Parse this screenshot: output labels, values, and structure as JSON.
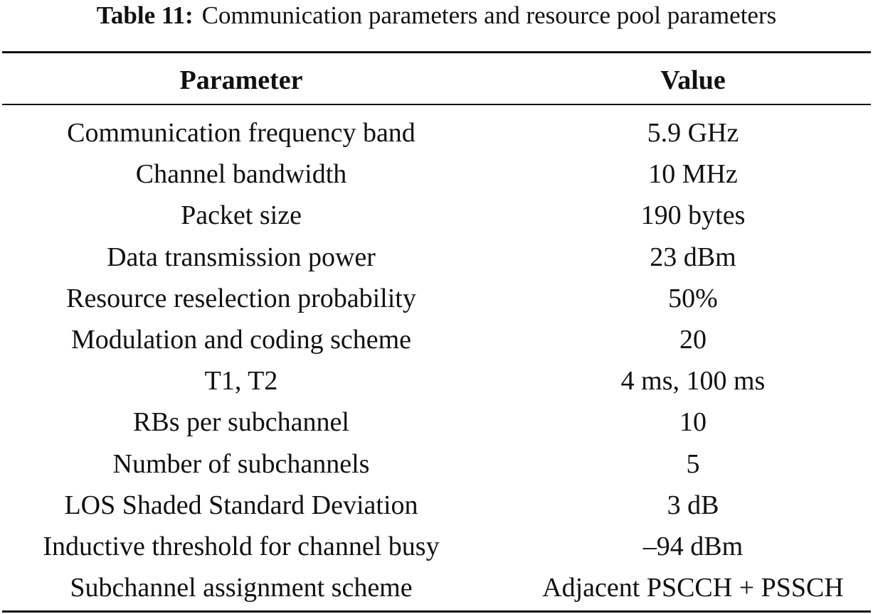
{
  "caption": {
    "label": "Table 11:",
    "text": "Communication parameters and resource pool parameters"
  },
  "table": {
    "headers": [
      "Parameter",
      "Value"
    ],
    "rows": [
      [
        "Communication frequency band",
        "5.9 GHz"
      ],
      [
        "Channel bandwidth",
        "10 MHz"
      ],
      [
        "Packet size",
        "190 bytes"
      ],
      [
        "Data transmission power",
        "23 dBm"
      ],
      [
        "Resource reselection probability",
        "50%"
      ],
      [
        "Modulation and coding scheme",
        "20"
      ],
      [
        "T1, T2",
        "4 ms, 100 ms"
      ],
      [
        "RBs per subchannel",
        "10"
      ],
      [
        "Number of subchannels",
        "5"
      ],
      [
        "LOS Shaded Standard Deviation",
        "3 dB"
      ],
      [
        "Inductive threshold for channel busy",
        "–94 dBm"
      ],
      [
        "Subchannel assignment scheme",
        "Adjacent PSCCH + PSSCH"
      ]
    ]
  }
}
